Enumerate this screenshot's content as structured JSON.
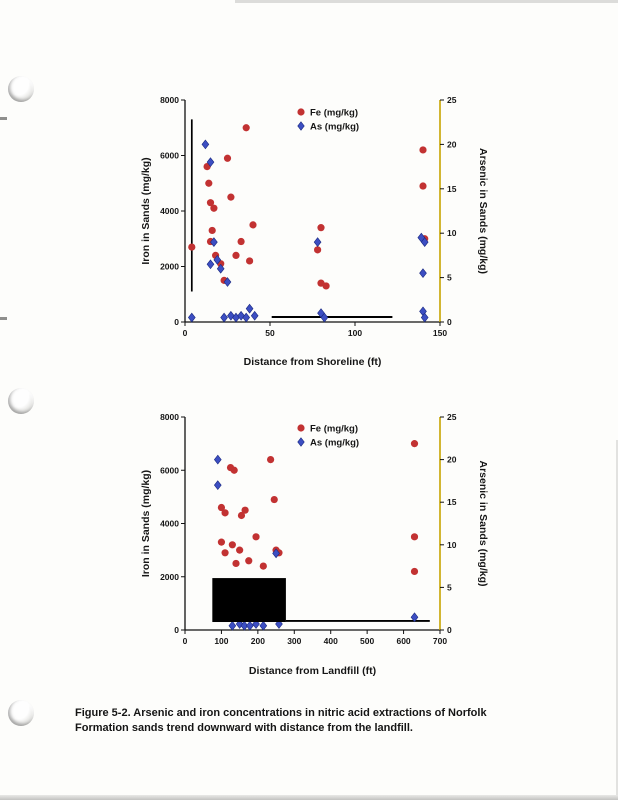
{
  "caption": {
    "lines": [
      "Figure 5-2.  Arsenic and iron concentrations in nitric acid extractions of Norfolk",
      "Formation sands trend downward with distance from the landfill."
    ]
  },
  "colors": {
    "fe_marker": "#c23232",
    "as_marker": "#3c4ec2",
    "as_marker_edge": "#1b2a80",
    "axis": "#111111",
    "right_axis_line": "#c7a500",
    "annotation": "#000000"
  },
  "chart_data": [
    {
      "type": "scatter",
      "title": "",
      "xlabel": "Distance from Shoreline (ft)",
      "ylabel_left": "Iron in Sands (mg/kg)",
      "ylabel_right": "Arsenic in Sands (mg/kg)",
      "xlim": [
        0,
        150
      ],
      "xticks": [
        0,
        50,
        100,
        150
      ],
      "ylim_left": [
        0,
        8000
      ],
      "yticks_left": [
        0,
        2000,
        4000,
        6000,
        8000
      ],
      "ylim_right": [
        0,
        25
      ],
      "yticks_right": [
        0,
        5,
        10,
        15,
        20,
        25
      ],
      "legend_position": "top-center-inside",
      "grid": false,
      "legend": [
        {
          "label": "Fe (mg/kg)",
          "marker": "circle"
        },
        {
          "label": "As (mg/kg)",
          "marker": "diamond"
        }
      ],
      "series": [
        {
          "name": "Fe (mg/kg)",
          "axis": "left",
          "marker": "circle",
          "points": [
            [
              4,
              2700
            ],
            [
              13,
              5600
            ],
            [
              14,
              5000
            ],
            [
              15,
              4300
            ],
            [
              17,
              4100
            ],
            [
              16,
              3300
            ],
            [
              15,
              2900
            ],
            [
              18,
              2400
            ],
            [
              21,
              2100
            ],
            [
              25,
              5900
            ],
            [
              27,
              4500
            ],
            [
              23,
              1500
            ],
            [
              30,
              2400
            ],
            [
              33,
              2900
            ],
            [
              36,
              7000
            ],
            [
              38,
              2200
            ],
            [
              40,
              3500
            ],
            [
              78,
              2600
            ],
            [
              80,
              3400
            ],
            [
              80,
              1400
            ],
            [
              83,
              1300
            ],
            [
              140,
              6200
            ],
            [
              140,
              4900
            ],
            [
              141,
              3000
            ]
          ]
        },
        {
          "name": "As (mg/kg)",
          "axis": "right",
          "marker": "diamond",
          "points": [
            [
              4,
              0.5
            ],
            [
              12,
              20
            ],
            [
              15,
              18
            ],
            [
              15,
              6.5
            ],
            [
              17,
              9
            ],
            [
              19,
              7
            ],
            [
              21,
              6
            ],
            [
              23,
              0.5
            ],
            [
              25,
              4.5
            ],
            [
              27,
              0.7
            ],
            [
              30,
              0.5
            ],
            [
              33,
              0.7
            ],
            [
              36,
              0.5
            ],
            [
              38,
              1.5
            ],
            [
              41,
              0.7
            ],
            [
              78,
              9
            ],
            [
              80,
              1
            ],
            [
              82,
              0.5
            ],
            [
              139,
              9.5
            ],
            [
              141,
              9
            ],
            [
              140,
              5.5
            ],
            [
              140,
              1.2
            ],
            [
              141,
              0.5
            ]
          ]
        }
      ],
      "annotations": [
        {
          "type": "vline",
          "x": 4,
          "fe_from": 1100,
          "fe_to": 7300
        },
        {
          "type": "hline",
          "fe": 180,
          "x_from": 51,
          "x_to": 122
        }
      ]
    },
    {
      "type": "scatter",
      "title": "",
      "xlabel": "Distance from Landfill (ft)",
      "ylabel_left": "Iron in Sands (mg/kg)",
      "ylabel_right": "Arsenic in Sands (mg/kg)",
      "xlim": [
        0,
        700
      ],
      "xticks": [
        0,
        100,
        200,
        300,
        400,
        500,
        600,
        700
      ],
      "ylim_left": [
        0,
        8000
      ],
      "yticks_left": [
        0,
        2000,
        4000,
        6000,
        8000
      ],
      "ylim_right": [
        0,
        25
      ],
      "yticks_right": [
        0,
        5,
        10,
        15,
        20,
        25
      ],
      "legend_position": "top-center-inside",
      "grid": false,
      "legend": [
        {
          "label": "Fe (mg/kg)",
          "marker": "circle"
        },
        {
          "label": "As (mg/kg)",
          "marker": "diamond"
        }
      ],
      "series": [
        {
          "name": "Fe (mg/kg)",
          "axis": "left",
          "marker": "circle",
          "points": [
            [
              100,
              4600
            ],
            [
              110,
              4400
            ],
            [
              125,
              6100
            ],
            [
              135,
              6000
            ],
            [
              100,
              3300
            ],
            [
              110,
              2900
            ],
            [
              130,
              3200
            ],
            [
              140,
              2500
            ],
            [
              150,
              3000
            ],
            [
              155,
              4300
            ],
            [
              165,
              4500
            ],
            [
              175,
              2600
            ],
            [
              195,
              3500
            ],
            [
              215,
              2400
            ],
            [
              235,
              6400
            ],
            [
              245,
              4900
            ],
            [
              250,
              3000
            ],
            [
              258,
              2900
            ],
            [
              630,
              7000
            ],
            [
              630,
              3500
            ],
            [
              630,
              2200
            ]
          ]
        },
        {
          "name": "As (mg/kg)",
          "axis": "right",
          "marker": "diamond",
          "points": [
            [
              90,
              20
            ],
            [
              90,
              17
            ],
            [
              130,
              0.5
            ],
            [
              150,
              0.7
            ],
            [
              163,
              0.5
            ],
            [
              178,
              0.5
            ],
            [
              195,
              0.7
            ],
            [
              215,
              0.5
            ],
            [
              250,
              9
            ],
            [
              258,
              0.7
            ],
            [
              630,
              1.5
            ]
          ]
        }
      ],
      "annotations": [
        {
          "type": "hline",
          "fe": 340,
          "x_from": 277,
          "x_to": 672
        },
        {
          "type": "rect",
          "x_from": 75,
          "x_to": 277,
          "fe_from": 300,
          "fe_to": 1950
        }
      ]
    }
  ]
}
